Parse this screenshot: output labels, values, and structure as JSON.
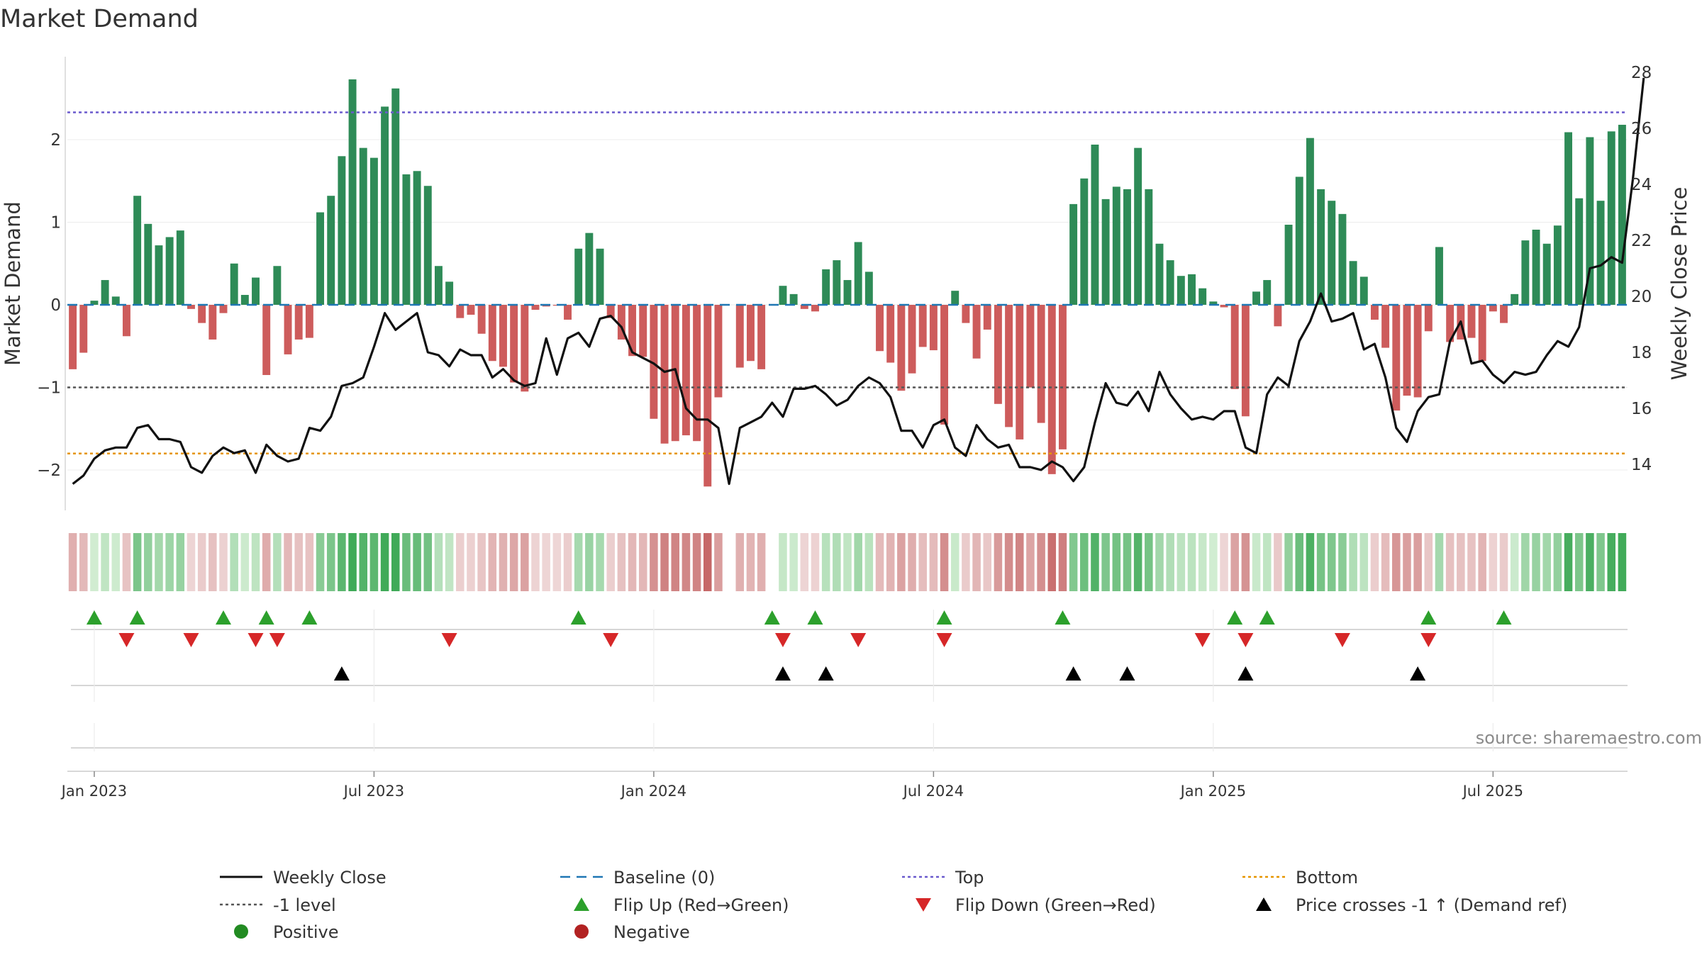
{
  "chart_data": {
    "type": "bar+line",
    "title": "Market Demand",
    "ylabel_left": "Market Demand",
    "ylabel_right": "Weekly Close Price",
    "ylim_left": [
      -2.5,
      3.0
    ],
    "ylim_right": [
      12.5,
      28.5
    ],
    "yticks_left": [
      2,
      1,
      0,
      -1,
      -2
    ],
    "yticks_left_labels": [
      "2",
      "1",
      "0",
      "−1",
      "−2"
    ],
    "yticks_right": [
      28,
      26,
      24,
      22,
      20,
      18,
      16,
      14
    ],
    "x_tick_labels": [
      "Jan 2023",
      "Jul 2023",
      "Jan 2024",
      "Jul 2024",
      "Jan 2025",
      "Jul 2025"
    ],
    "x_tick_weeks": [
      2,
      28,
      54,
      80,
      106,
      132
    ],
    "levels": {
      "top": 2.33,
      "minus_one": -1,
      "bottom": -1.8,
      "baseline": 0
    },
    "demand": [
      -0.78,
      -0.58,
      0.05,
      0.3,
      0.1,
      -0.38,
      1.32,
      0.98,
      0.72,
      0.82,
      0.9,
      -0.05,
      -0.22,
      -0.42,
      -0.1,
      0.5,
      0.12,
      0.33,
      -0.85,
      0.47,
      -0.6,
      -0.42,
      -0.4,
      1.12,
      1.32,
      1.8,
      2.73,
      1.9,
      1.78,
      2.4,
      2.62,
      1.58,
      1.62,
      1.44,
      0.47,
      0.28,
      -0.16,
      -0.12,
      -0.35,
      -0.68,
      -0.75,
      -0.94,
      -1.05,
      -0.06,
      -0.02,
      -0.01,
      -0.18,
      0.68,
      0.87,
      0.68,
      -0.16,
      -0.42,
      -0.62,
      -0.63,
      -1.38,
      -1.68,
      -1.65,
      -1.58,
      -1.65,
      -2.2,
      -1.12,
      0,
      -0.76,
      -0.68,
      -0.78,
      0.0,
      0.23,
      0.13,
      -0.05,
      -0.08,
      0.43,
      0.54,
      0.3,
      0.76,
      0.4,
      -0.56,
      -0.7,
      -1.04,
      -0.83,
      -0.51,
      -0.55,
      -1.45,
      0.17,
      -0.22,
      -0.65,
      -0.3,
      -1.2,
      -1.48,
      -1.63,
      -1.0,
      -1.43,
      -2.05,
      -1.75,
      1.22,
      1.53,
      1.94,
      1.28,
      1.43,
      1.4,
      1.9,
      1.4,
      0.74,
      0.54,
      0.35,
      0.37,
      0.2,
      0.04,
      -0.03,
      -1.02,
      -1.35,
      0.16,
      0.3,
      -0.26,
      0.97,
      1.55,
      2.02,
      1.4,
      1.26,
      1.1,
      0.53,
      0.34,
      -0.18,
      -0.52,
      -1.28,
      -1.1,
      -1.12,
      -0.32,
      0.7,
      -0.45,
      -0.42,
      -0.4,
      -0.68,
      -0.08,
      -0.22,
      0.13,
      0.78,
      0.91,
      0.74,
      0.96,
      2.09,
      1.29,
      2.03,
      1.26,
      2.1,
      2.18
    ],
    "weekly_close": [
      13.3,
      13.6,
      14.2,
      14.5,
      14.6,
      14.6,
      15.3,
      15.4,
      14.9,
      14.9,
      14.8,
      13.9,
      13.7,
      14.3,
      14.6,
      14.4,
      14.5,
      13.7,
      14.7,
      14.3,
      14.1,
      14.2,
      15.3,
      15.2,
      15.7,
      16.8,
      16.9,
      17.1,
      18.2,
      19.4,
      18.8,
      19.1,
      19.4,
      18.0,
      17.9,
      17.5,
      18.1,
      17.9,
      17.9,
      17.1,
      17.4,
      17.0,
      16.8,
      16.9,
      18.5,
      17.2,
      18.5,
      18.7,
      18.2,
      19.2,
      19.3,
      18.9,
      18.0,
      17.8,
      17.6,
      17.3,
      17.4,
      16.0,
      15.6,
      15.6,
      15.3,
      13.3,
      15.3,
      15.5,
      15.7,
      16.2,
      15.7,
      16.7,
      16.7,
      16.8,
      16.5,
      16.1,
      16.3,
      16.8,
      17.1,
      16.9,
      16.4,
      15.2,
      15.2,
      14.6,
      15.4,
      15.6,
      14.6,
      14.3,
      15.4,
      14.9,
      14.6,
      14.7,
      13.9,
      13.9,
      13.8,
      14.1,
      13.9,
      13.4,
      13.9,
      15.5,
      16.9,
      16.2,
      16.1,
      16.6,
      15.9,
      17.3,
      16.5,
      16.0,
      15.6,
      15.7,
      15.6,
      15.9,
      15.9,
      14.6,
      14.4,
      16.5,
      17.1,
      16.8,
      18.4,
      19.1,
      20.1,
      19.1,
      19.2,
      19.4,
      18.1,
      18.3,
      17.1,
      15.3,
      14.8,
      15.9,
      16.4,
      16.5,
      18.4,
      19.1,
      17.6,
      17.7,
      17.2,
      16.9,
      17.3,
      17.2,
      17.3,
      17.9,
      18.4,
      18.2,
      18.9,
      21.0,
      21.1,
      21.4,
      21.2,
      24.2,
      27.8
    ],
    "flip_up_weeks": [
      2,
      6,
      14,
      18,
      22,
      47,
      65,
      69,
      81,
      92,
      108,
      111,
      126,
      133
    ],
    "flip_down_weeks": [
      5,
      11,
      17,
      19,
      35,
      50,
      66,
      73,
      81,
      105,
      109,
      118,
      126
    ],
    "price_cross_weeks": [
      25,
      66,
      70,
      93,
      98,
      109,
      125
    ],
    "legend": [
      {
        "label": "Weekly Close",
        "kind": "solid-line",
        "color": "#111111"
      },
      {
        "label": "Baseline (0)",
        "kind": "dashed-line",
        "color": "#1f77b4"
      },
      {
        "label": "Top",
        "kind": "dotted-line",
        "color": "#6a5acd"
      },
      {
        "label": "Bottom",
        "kind": "dotted-line",
        "color": "#e69500"
      },
      {
        "label": "-1 level",
        "kind": "dotted-line",
        "color": "#555555"
      },
      {
        "label": "Flip Up (Red→Green)",
        "kind": "triangle-up",
        "color": "#2ca02c"
      },
      {
        "label": "Flip Down (Green→Red)",
        "kind": "triangle-down",
        "color": "#d62728"
      },
      {
        "label": "Price crosses -1 ↑ (Demand ref)",
        "kind": "triangle-up",
        "color": "#000000"
      },
      {
        "label": "Positive",
        "kind": "dot",
        "color": "#228b22"
      },
      {
        "label": "Negative",
        "kind": "dot",
        "color": "#b22222"
      }
    ]
  },
  "source": "source: sharemaestro.com",
  "colors": {
    "positive_bar": "#2e8b57",
    "negative_bar": "#cd5c5c",
    "top_line": "#6a5acd",
    "bottom_line": "#e69500",
    "minus_one_line": "#555555",
    "baseline": "#1f77b4",
    "close_line": "#111111"
  }
}
